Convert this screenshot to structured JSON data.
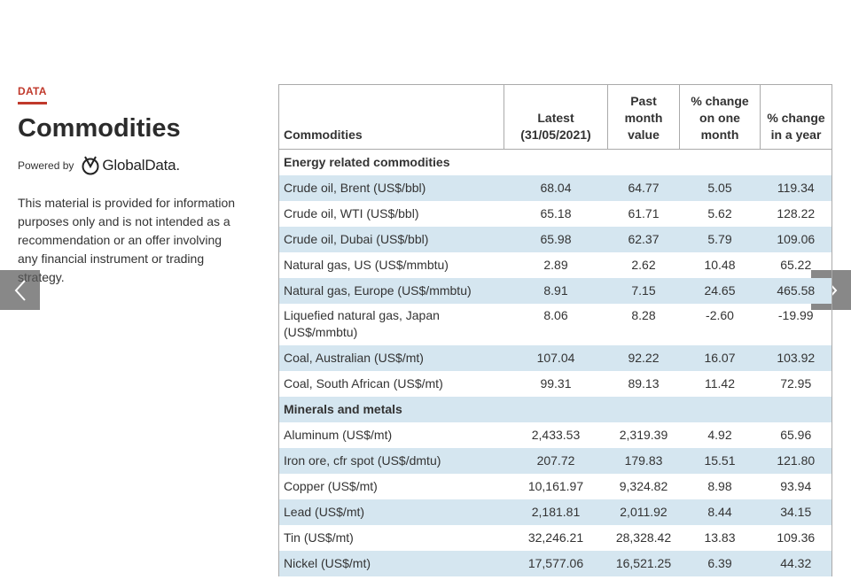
{
  "sidebar": {
    "tag": "DATA",
    "title": "Commodities",
    "powered_by": "Powered by",
    "logo_text": "GlobalData.",
    "disclaimer": "This material is provided for information purposes only and is not intended as a recommendation or an offer involving any financial instrument or trading strategy."
  },
  "nav": {
    "prev_icon": "chevron-left-icon",
    "next_icon": "chevron-right-icon"
  },
  "colors": {
    "accent": "#c0392b",
    "row_alt": "#d5e6f0",
    "nav_bg": "#5a5a5a"
  },
  "table": {
    "headers": [
      "Commodities",
      "Latest (31/05/2021)",
      "Past month value",
      "% change on one month",
      "% change in a year"
    ],
    "rows": [
      {
        "section": "Energy related commodities"
      },
      {
        "cells": [
          "Crude oil, Brent (US$/bbl)",
          "68.04",
          "64.77",
          "5.05",
          "119.34"
        ]
      },
      {
        "cells": [
          "Crude oil, WTI (US$/bbl)",
          "65.18",
          "61.71",
          "5.62",
          "128.22"
        ]
      },
      {
        "cells": [
          "Crude oil, Dubai (US$/bbl)",
          "65.98",
          "62.37",
          "5.79",
          "109.06"
        ]
      },
      {
        "cells": [
          "Natural gas, US (US$/mmbtu)",
          "2.89",
          "2.62",
          "10.48",
          "65.22"
        ]
      },
      {
        "cells": [
          "Natural gas, Europe (US$/mmbtu)",
          "8.91",
          "7.15",
          "24.65",
          "465.58"
        ]
      },
      {
        "cells": [
          "Liquefied natural gas, Japan (US$/mmbtu)",
          "8.06",
          "8.28",
          "-2.60",
          "-19.99"
        ]
      },
      {
        "cells": [
          "Coal, Australian (US$/mt)",
          "107.04",
          "92.22",
          "16.07",
          "103.92"
        ]
      },
      {
        "cells": [
          "Coal, South African (US$/mt)",
          "99.31",
          "89.13",
          "11.42",
          "72.95"
        ]
      },
      {
        "section": "Minerals and metals"
      },
      {
        "cells": [
          "Aluminum (US$/mt)",
          "2,433.53",
          "2,319.39",
          "4.92",
          "65.96"
        ]
      },
      {
        "cells": [
          "Iron ore, cfr spot (US$/dmtu)",
          "207.72",
          "179.83",
          "15.51",
          "121.80"
        ]
      },
      {
        "cells": [
          "Copper (US$/mt)",
          "10,161.97",
          "9,324.82",
          "8.98",
          "93.94"
        ]
      },
      {
        "cells": [
          "Lead (US$/mt)",
          "2,181.81",
          "2,011.92",
          "8.44",
          "34.15"
        ]
      },
      {
        "cells": [
          "Tin (US$/mt)",
          "32,246.21",
          "28,328.42",
          "13.83",
          "109.36"
        ]
      },
      {
        "cells": [
          "Nickel (US$/mt)",
          "17,577.06",
          "16,521.25",
          "6.39",
          "44.32"
        ]
      }
    ]
  }
}
